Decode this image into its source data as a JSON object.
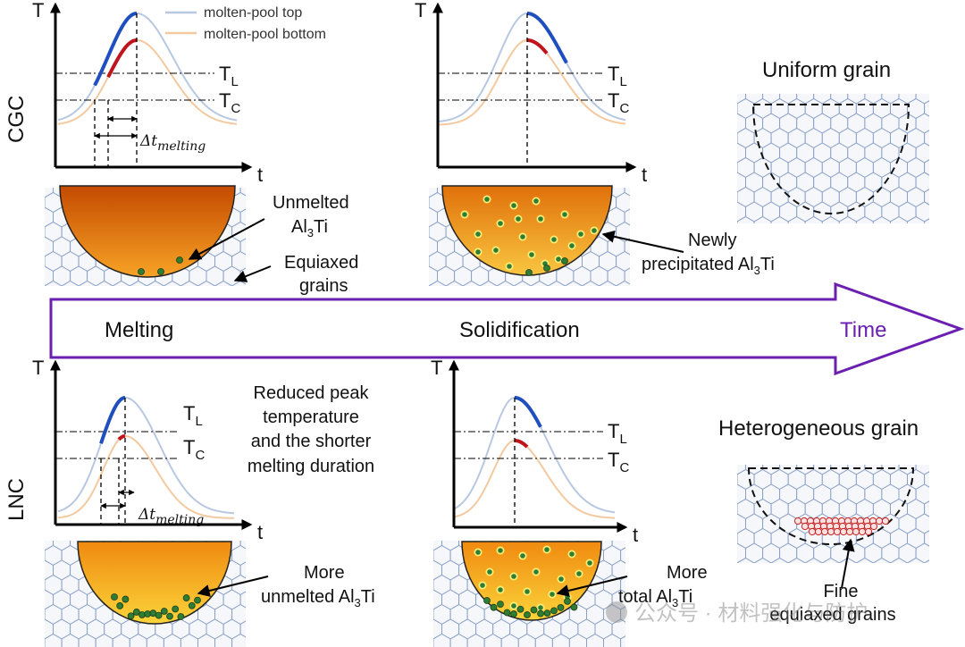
{
  "rows": {
    "top": "CGC",
    "bottom": "LNC"
  },
  "axes": {
    "y": "T",
    "x": "t",
    "tl": "T",
    "tl_sub": "L",
    "tc": "T",
    "tc_sub": "C"
  },
  "legend": {
    "top": "molten-pool top",
    "bottom": "molten-pool bottom",
    "top_color": "#b8c8e0",
    "bottom_color": "#f3c9a0"
  },
  "delta": {
    "symbol": "Δt",
    "sub": "melting"
  },
  "timeline": {
    "melting": "Melting",
    "solidification": "Solidification",
    "time": "Time",
    "color": "#6a1fb0"
  },
  "cgc": {
    "unmelted": [
      "Unmelted",
      "Al",
      "3",
      "Ti"
    ],
    "equiaxed": [
      "Equiaxed",
      "grains"
    ],
    "newly": [
      "Newly",
      "precipitated Al",
      "3",
      "Ti"
    ],
    "result": "Uniform grain"
  },
  "lnc": {
    "note": [
      "Reduced peak",
      "temperature",
      "and the shorter",
      "melting duration"
    ],
    "more_unmelted": [
      "More",
      "unmelted Al",
      "3",
      "Ti"
    ],
    "more_total": [
      "More",
      "total Al",
      "3",
      "Ti"
    ],
    "result": "Heterogeneous grain",
    "fine": [
      "Fine",
      "equiaxed grains"
    ]
  },
  "colors": {
    "heating_top": "#1f4fbf",
    "heating_bottom": "#c0141c",
    "particle": "#2e7d32"
  },
  "watermark": "公众号 · 材料强化与防护"
}
